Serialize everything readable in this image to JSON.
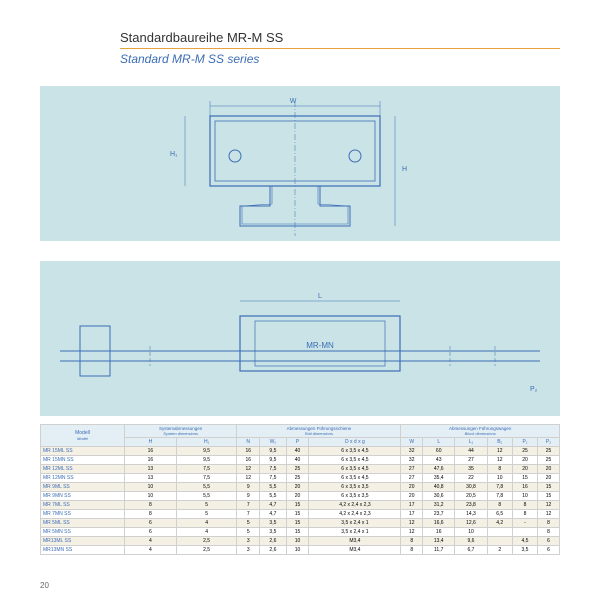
{
  "page_number": "20",
  "title_de": "Standardbaureihe MR-M SS",
  "title_en": "Standard MR-M SS series",
  "colors": {
    "diagram_bg": "#c9e3e6",
    "accent_blue": "#3b6db5",
    "rule_orange": "#e8a23d",
    "row_alt": "#f5f0e4"
  },
  "diagram_label": "MR-MN",
  "header_groups": {
    "model_de": "Modell",
    "model_en": "Model",
    "g1_de": "Systemabmessungen",
    "g1_en": "System dimensions",
    "g2_de": "Abmessungen Führungsschiene",
    "g2_en": "Rail dimensions",
    "g3_de": "Abmessungen Führungswagen",
    "g3_en": "Block dimensions"
  },
  "columns": [
    "H",
    "H₁",
    "N",
    "W₂",
    "P",
    "D x d x g",
    "W",
    "L",
    "L₁",
    "B₁",
    "P₁",
    "P₂"
  ],
  "rows": [
    {
      "m": "MR 15ML SS",
      "c": [
        "16",
        "9,5",
        "16",
        "9,5",
        "40",
        "6 x 3,5 x 4,5",
        "32",
        "60",
        "44",
        "12",
        "25",
        "25"
      ]
    },
    {
      "m": "MR 15MN SS",
      "c": [
        "16",
        "9,5",
        "16",
        "9,5",
        "40",
        "6 x 3,5 x 4,5",
        "32",
        "43",
        "27",
        "12",
        "20",
        "25"
      ]
    },
    {
      "m": "MR 12ML SS",
      "c": [
        "13",
        "7,5",
        "12",
        "7,5",
        "25",
        "6 x 3,5 x 4,5",
        "27",
        "47,6",
        "35",
        "8",
        "20",
        "20"
      ]
    },
    {
      "m": "MR 12MN SS",
      "c": [
        "13",
        "7,5",
        "12",
        "7,5",
        "25",
        "6 x 3,5 x 4,5",
        "27",
        "35,4",
        "22",
        "10",
        "15",
        "20"
      ]
    },
    {
      "m": "MR 9ML SS",
      "c": [
        "10",
        "5,5",
        "9",
        "5,5",
        "20",
        "6 x 3,5 x 3,5",
        "20",
        "40,8",
        "30,8",
        "7,8",
        "16",
        "15"
      ]
    },
    {
      "m": "MR 9MN SS",
      "c": [
        "10",
        "5,5",
        "9",
        "5,5",
        "20",
        "6 x 3,5 x 3,5",
        "20",
        "30,6",
        "20,5",
        "7,8",
        "10",
        "15"
      ]
    },
    {
      "m": "MR 7ML SS",
      "c": [
        "8",
        "5",
        "7",
        "4,7",
        "15",
        "4,2 x 2,4 x 2,3",
        "17",
        "31,2",
        "23,8",
        "8",
        "8",
        "12"
      ]
    },
    {
      "m": "MR 7MN SS",
      "c": [
        "8",
        "5",
        "7",
        "4,7",
        "15",
        "4,2 x 2,4 x 2,3",
        "17",
        "23,7",
        "14,3",
        "6,5",
        "8",
        "12"
      ]
    },
    {
      "m": "MR 5ML SS",
      "c": [
        "6",
        "4",
        "5",
        "3,5",
        "15",
        "3,5 x 2,4 x 1",
        "12",
        "16,6",
        "12,6",
        "4,2",
        "-",
        "8"
      ]
    },
    {
      "m": "MR 5MN SS",
      "c": [
        "6",
        "4",
        "5",
        "3,5",
        "15",
        "3,5 x 2,4 x 1",
        "12",
        "16",
        "10",
        "",
        "",
        "8"
      ]
    },
    {
      "m": "MR13ML SS",
      "c": [
        "4",
        "2,5",
        "3",
        "2,6",
        "10",
        "M3,4",
        "8",
        "13,4",
        "9,6",
        "",
        "4,5",
        "6"
      ]
    },
    {
      "m": "MR13MN SS",
      "c": [
        "4",
        "2,5",
        "3",
        "2,6",
        "10",
        "M3,4",
        "8",
        "11,7",
        "6,7",
        "2",
        "3,5",
        "6"
      ]
    }
  ]
}
